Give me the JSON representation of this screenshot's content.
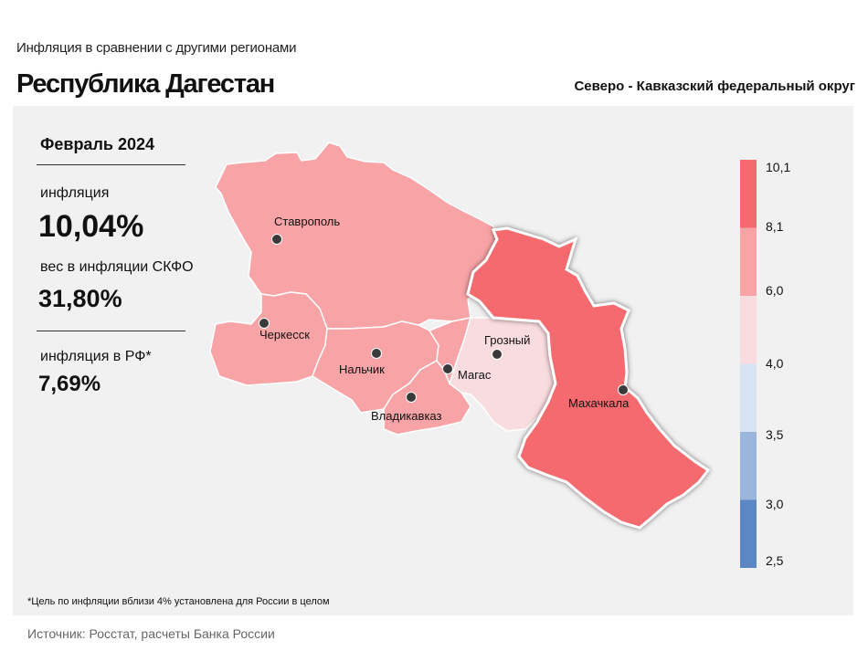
{
  "header": {
    "supertitle": "Инфляция  в сравнении  с другими  регионами",
    "title": "Республика Дагестан",
    "district": "Северо - Кавказский федеральный округ"
  },
  "stats": {
    "period": "Февраль 2024",
    "inflation_label": "инфляция",
    "inflation_value": "10,04%",
    "weight_label": "вес в инфляции  СКФО",
    "weight_value": "31,80%",
    "russia_label": "инфляция  в РФ*",
    "russia_value": "7,69%"
  },
  "footnote": "*Цель по инфляции вблизи 4% установлена для России в целом",
  "source": "Источник: Росстат, расчеты Банка России",
  "colors": {
    "scale": [
      "#5b87c5",
      "#9bb6dc",
      "#d7e2f3",
      "#f9dcdf",
      "#f8a3a6",
      "#f46a6e"
    ]
  },
  "chart_data": {
    "type": "choropleth",
    "title": "Республика Дагестан",
    "period": "Февраль 2024",
    "unit": "%",
    "legend": {
      "breaks": [
        "2,5",
        "3,0",
        "3,5",
        "4,0",
        "6,0",
        "8,1",
        "10,1"
      ],
      "bins": [
        {
          "from": 2.5,
          "to": 3.0,
          "color": "#5b87c5"
        },
        {
          "from": 3.0,
          "to": 3.5,
          "color": "#9bb6dc"
        },
        {
          "from": 3.5,
          "to": 4.0,
          "color": "#d7e2f3"
        },
        {
          "from": 4.0,
          "to": 6.0,
          "color": "#f9dcdf"
        },
        {
          "from": 6.0,
          "to": 8.1,
          "color": "#f8a3a6"
        },
        {
          "from": 8.1,
          "to": 10.1,
          "color": "#f46a6e"
        }
      ]
    },
    "regions": [
      {
        "id": "stavropol",
        "bin": "6,0 – 8,1",
        "color": "#f8a3a6"
      },
      {
        "id": "karachay-cherkessia",
        "bin": "6,0 – 8,1",
        "color": "#f8a3a6"
      },
      {
        "id": "kabardino-balkaria",
        "bin": "6,0 – 8,1",
        "color": "#f8a3a6"
      },
      {
        "id": "north-ossetia",
        "bin": "6,0 – 8,1",
        "color": "#f8a3a6"
      },
      {
        "id": "ingushetia",
        "bin": "6,0 – 8,1",
        "color": "#f8a3a6"
      },
      {
        "id": "chechnya",
        "bin": "4,0 – 6,0",
        "color": "#f9dcdf"
      },
      {
        "id": "dagestan",
        "bin": "8,1 – 10,1",
        "color": "#f46a6e",
        "highlighted": true
      }
    ],
    "cities": [
      "Ставрополь",
      "Черкесск",
      "Нальчик",
      "Магас",
      "Владикавказ",
      "Грозный",
      "Махачкала"
    ]
  }
}
